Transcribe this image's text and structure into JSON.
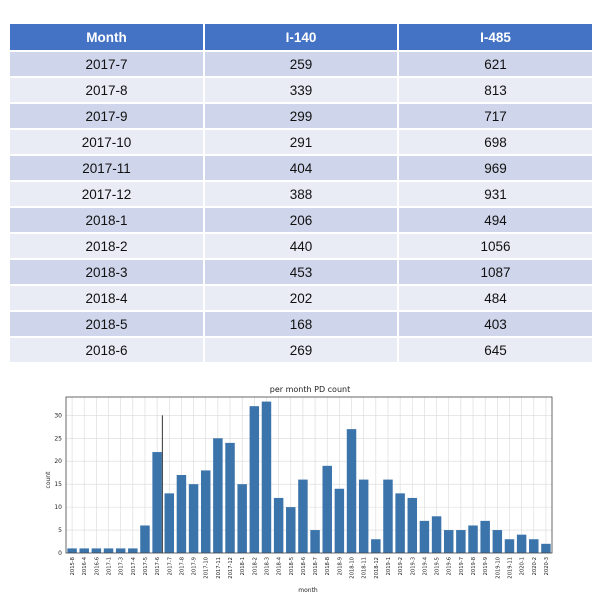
{
  "table": {
    "headers": [
      "Month",
      "I-140",
      "I-485"
    ],
    "rows": [
      [
        "2017-7",
        "259",
        "621"
      ],
      [
        "2017-8",
        "339",
        "813"
      ],
      [
        "2017-9",
        "299",
        "717"
      ],
      [
        "2017-10",
        "291",
        "698"
      ],
      [
        "2017-11",
        "404",
        "969"
      ],
      [
        "2017-12",
        "388",
        "931"
      ],
      [
        "2018-1",
        "206",
        "494"
      ],
      [
        "2018-2",
        "440",
        "1056"
      ],
      [
        "2018-3",
        "453",
        "1087"
      ],
      [
        "2018-4",
        "202",
        "484"
      ],
      [
        "2018-5",
        "168",
        "403"
      ],
      [
        "2018-6",
        "269",
        "645"
      ]
    ],
    "colors": {
      "header": "#4472c4",
      "row_odd": "#cfd5ea",
      "row_even": "#e9ebf5"
    }
  },
  "chart_data": {
    "type": "bar",
    "title": "per month PD count",
    "xlabel": "month",
    "ylabel": "count",
    "ylim": [
      0,
      34
    ],
    "yticks": [
      0,
      5,
      10,
      15,
      20,
      25,
      30
    ],
    "grid": true,
    "bar_color": "#3b74ab",
    "categories": [
      "2015-8",
      "2016-4",
      "2016-6",
      "2017-1",
      "2017-3",
      "2017-4",
      "2017-5",
      "2017-6",
      "2017-7",
      "2017-8",
      "2017-9",
      "2017-10",
      "2017-11",
      "2017-12",
      "2018-1",
      "2018-2",
      "2018-3",
      "2018-4",
      "2018-5",
      "2018-6",
      "2018-7",
      "2018-8",
      "2018-9",
      "2018-10",
      "2018-11",
      "2018-12",
      "2019-1",
      "2019-2",
      "2019-3",
      "2019-4",
      "2019-5",
      "2019-6",
      "2019-7",
      "2019-8",
      "2019-9",
      "2019-10",
      "2019-11",
      "2020-1",
      "2020-2",
      "2020-3"
    ],
    "values": [
      1,
      1,
      1,
      1,
      1,
      1,
      6,
      22,
      13,
      17,
      15,
      18,
      25,
      24,
      15,
      32,
      33,
      12,
      10,
      16,
      5,
      19,
      14,
      27,
      16,
      3,
      16,
      13,
      12,
      7,
      8,
      5,
      5,
      6,
      7,
      5,
      3,
      4,
      3,
      2
    ],
    "annotation_line": {
      "category": "2017-6",
      "value": 30
    }
  }
}
